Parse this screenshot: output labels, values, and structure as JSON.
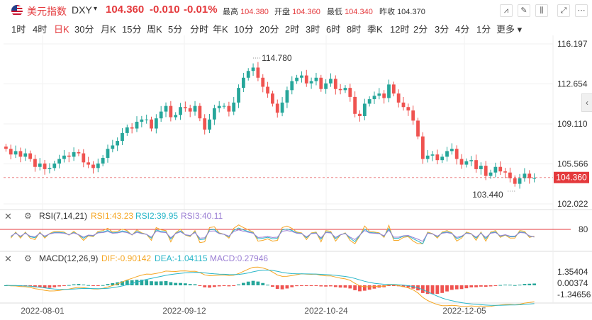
{
  "header": {
    "symbol_name": "美元指数",
    "symbol_code": "DXY",
    "caret": "▾",
    "last": "104.360",
    "change": "-0.010",
    "change_pct": "-0.01%",
    "high_label": "最高",
    "high": "104.380",
    "open_label": "开盘",
    "open": "104.360",
    "low_label": "最低",
    "low": "104.340",
    "prev_label": "昨收",
    "prev": "104.370",
    "tools": [
      "chart-type-icon",
      "draw-icon",
      "candle-style-icon",
      "fullscreen-icon",
      "more-icon"
    ]
  },
  "periods": [
    "1时",
    "4时",
    "日K",
    "30分",
    "月K",
    "15分",
    "周K",
    "5分",
    "分时",
    "年K",
    "10分",
    "20分",
    "2时",
    "3时",
    "6时",
    "8时",
    "季K",
    "12时",
    "2分",
    "3分",
    "4分",
    "1分",
    "更多"
  ],
  "active_period": "日K",
  "colors": {
    "up": "#26a69a",
    "down": "#ef5350",
    "accent": "#e4393c",
    "rsi1": "#f5a623",
    "rsi2": "#29b6c8",
    "rsi3": "#9b7fd4",
    "dif": "#f5a623",
    "dea": "#29b6c8",
    "macd": "#9b7fd4"
  },
  "price_axis": [
    "116.197",
    "112.654",
    "109.110",
    "105.566",
    "102.022"
  ],
  "current_price_tag": "104.360",
  "max_label": "114.780",
  "min_label": "103.440",
  "rsi": {
    "title": "RSI(7,14,21)",
    "rsi1": "RSI1:43.23",
    "rsi2": "RSI2:39.95",
    "rsi3": "RSI3:40.11",
    "axis_label": "80"
  },
  "macd": {
    "title": "MACD(12,26,9)",
    "dif": "DIF:-0.90142",
    "dea": "DEA:-1.04115",
    "macd": "MACD:0.27946",
    "axis": [
      "1.35404",
      "0.00374",
      "-1.34656"
    ]
  },
  "dates": [
    "2022-08-01",
    "2022-09-12",
    "2022-10-24",
    "2022-12-05"
  ],
  "chart_data": {
    "type": "candlestick",
    "y_range": [
      102.022,
      116.197
    ],
    "closes": [
      106.9,
      106.4,
      106.7,
      106.2,
      106.5,
      106.0,
      105.3,
      105.6,
      105.1,
      105.2,
      105.6,
      106.0,
      106.3,
      106.2,
      106.6,
      106.5,
      105.7,
      105.5,
      105.2,
      105.6,
      106.1,
      106.9,
      107.2,
      107.6,
      108.3,
      108.8,
      108.7,
      109.3,
      109.5,
      109.5,
      108.7,
      109.6,
      110.2,
      110.7,
      109.7,
      109.9,
      110.6,
      110.5,
      110.2,
      110.7,
      109.6,
      108.6,
      109.5,
      110.5,
      110.7,
      110.7,
      110.2,
      111.0,
      112.3,
      113.2,
      113.8,
      114.1,
      113.2,
      112.4,
      111.8,
      110.9,
      110.1,
      111.0,
      112.1,
      112.9,
      113.2,
      113.4,
      112.7,
      112.9,
      113.2,
      112.2,
      112.7,
      113.1,
      112.2,
      112.1,
      112.3,
      111.5,
      110.0,
      109.8,
      110.9,
      111.3,
      111.6,
      111.8,
      111.4,
      112.6,
      111.8,
      111.0,
      110.6,
      110.3,
      109.4,
      108.0,
      106.0,
      106.3,
      106.4,
      105.9,
      106.2,
      106.7,
      106.9,
      106.0,
      105.5,
      105.8,
      105.9,
      105.1,
      105.4,
      104.5,
      104.8,
      105.3,
      104.9,
      104.8,
      104.3,
      103.8,
      104.3,
      104.7,
      104.3,
      104.3
    ],
    "rsi1_level": 43.23,
    "rsi2_level": 39.95,
    "rsi3_level": 40.11,
    "macd_last": {
      "dif": -0.90142,
      "dea": -1.04115,
      "macd": 0.27946
    }
  }
}
